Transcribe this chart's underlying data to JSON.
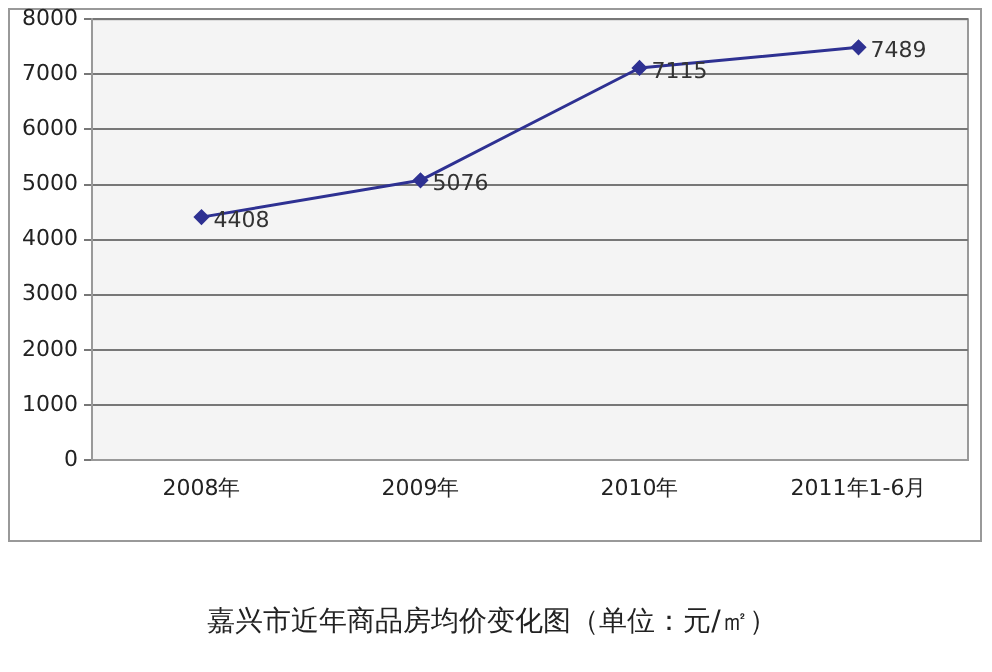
{
  "chart_data": {
    "type": "line",
    "title": "嘉兴市近年商品房均价变化图（单位：元/㎡）",
    "categories": [
      "2008年",
      "2009年",
      "2010年",
      "2011年1-6月"
    ],
    "series": [
      {
        "color": "#2e3192",
        "values": [
          4408,
          5076,
          7115,
          7489
        ]
      }
    ],
    "ylim": [
      0,
      8000
    ],
    "yticks": [
      0,
      1000,
      2000,
      3000,
      4000,
      5000,
      6000,
      7000,
      8000
    ],
    "grid": "y",
    "legend": false,
    "marker": "diamond",
    "line_style": "solid",
    "data_labels": true
  }
}
